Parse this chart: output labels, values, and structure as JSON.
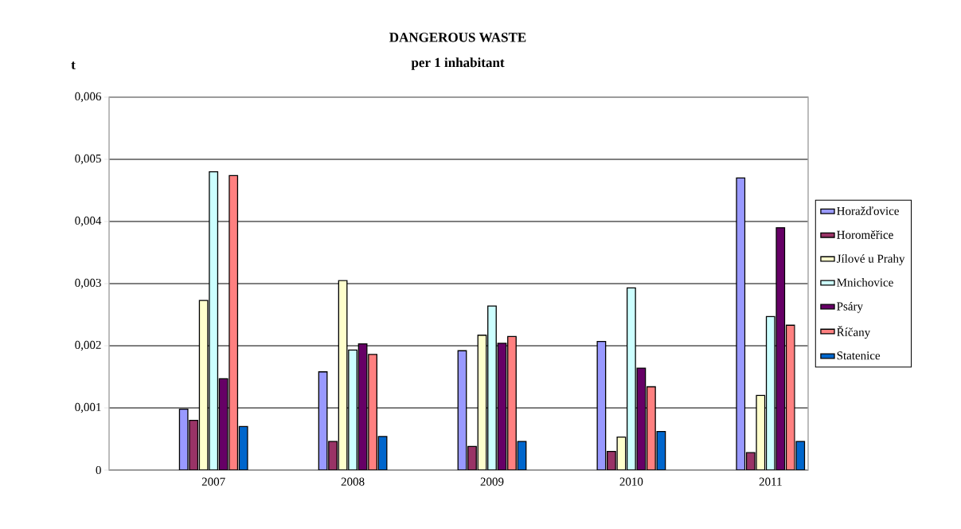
{
  "chart_data": {
    "type": "bar",
    "title": "DANGEROUS WASTE",
    "subtitle": "per 1 inhabitant",
    "ylabel": "t",
    "categories": [
      "2007",
      "2008",
      "2009",
      "2010",
      "2011"
    ],
    "series": [
      {
        "name": "Horažďovice",
        "color": "#9999ff",
        "values": [
          0.00098,
          0.00158,
          0.00192,
          0.00207,
          0.0047
        ]
      },
      {
        "name": "Horoměřice",
        "color": "#993366",
        "values": [
          0.0008,
          0.00046,
          0.00038,
          0.0003,
          0.00028
        ]
      },
      {
        "name": "Jílové u Prahy",
        "color": "#ffffcc",
        "values": [
          0.00273,
          0.00305,
          0.00217,
          0.00053,
          0.0012
        ]
      },
      {
        "name": "Mnichovice",
        "color": "#ccffff",
        "values": [
          0.0048,
          0.00193,
          0.00264,
          0.00293,
          0.00247
        ]
      },
      {
        "name": "Psáry",
        "color": "#660066",
        "values": [
          0.00147,
          0.00203,
          0.00204,
          0.00164,
          0.0039
        ]
      },
      {
        "name": "Říčany",
        "color": "#ff8080",
        "values": [
          0.00474,
          0.00186,
          0.00215,
          0.00134,
          0.00233
        ]
      },
      {
        "name": "Statenice",
        "color": "#0066cc",
        "values": [
          0.0007,
          0.00054,
          0.00046,
          0.00062,
          0.00046
        ]
      }
    ],
    "ylim": [
      0,
      0.006
    ],
    "yticks": [
      0,
      {
        "value": 0.001,
        "label": "0,001"
      },
      {
        "value": 0.002,
        "label": "0,002"
      },
      {
        "value": 0.003,
        "label": "0,003"
      },
      {
        "value": 0.004,
        "label": "0,004"
      },
      {
        "value": 0.005,
        "label": "0,005"
      },
      {
        "value": 0.006,
        "label": "0,006"
      }
    ],
    "grid": "y",
    "legend": "right"
  }
}
